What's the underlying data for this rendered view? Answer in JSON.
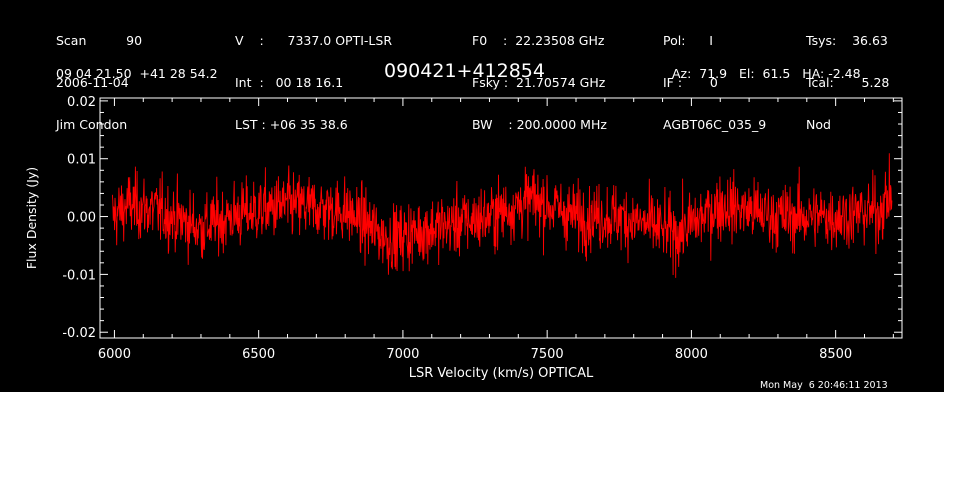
{
  "header": {
    "col1": [
      "Scan          90",
      "2006-11-04",
      "Jim Condon"
    ],
    "col2": [
      "V    :      7337.0 OPTI-LSR",
      "Int  :   00 18 16.1",
      "LST : +06 35 38.6"
    ],
    "col3": [
      "F0    :  22.23508 GHz",
      "Fsky :  21.70574 GHz",
      "BW    : 200.0000 MHz"
    ],
    "col4": [
      "Pol:      I",
      "IF :       0",
      "AGBT06C_035_9"
    ],
    "col5": [
      "Tsys:    36.63",
      "Tcal:       5.28",
      "Nod"
    ],
    "coords": "09 04 21.50  +41 28 54.2",
    "source": "090421+412854",
    "pointing": "Az:  71.9   El:  61.5   HA: -2.48",
    "timestamp": "Mon May  6 20:46:11 2013"
  },
  "colors": {
    "background": "#000000",
    "axes": "#ffffff",
    "series": "#ff0000"
  },
  "chart_data": {
    "type": "line",
    "xlabel": "LSR Velocity (km/s) OPTICAL",
    "ylabel": "Flux Density (Jy)",
    "xlim": [
      5950,
      8730
    ],
    "ylim": [
      -0.021,
      0.0205
    ],
    "xticks": [
      6000,
      6500,
      7000,
      7500,
      8000,
      8500
    ],
    "xtick_labels": [
      "6000",
      "6500",
      "7000",
      "7500",
      "8000",
      "8500"
    ],
    "yticks": [
      -0.02,
      -0.01,
      0.0,
      0.01,
      0.02
    ],
    "ytick_labels": [
      "-0.02",
      "-0.01",
      "0.00",
      "0.01",
      "0.02"
    ],
    "series": [
      {
        "x_range": [
          5993,
          8695
        ],
        "baseline": {
          "x": [
            5993,
            6050,
            6150,
            6300,
            6400,
            6600,
            6800,
            6950,
            7100,
            7300,
            7450,
            7600,
            7750,
            7950,
            8100,
            8300,
            8500,
            8650,
            8695
          ],
          "y": [
            0.0,
            0.002,
            0.001,
            -0.002,
            0.0,
            0.002,
            0.001,
            -0.004,
            -0.002,
            0.0,
            0.003,
            0.0,
            0.0,
            -0.003,
            0.002,
            0.0,
            0.0,
            0.001,
            0.004
          ]
        },
        "noise_rms": 0.004,
        "min": -0.013,
        "max": 0.017
      }
    ]
  }
}
